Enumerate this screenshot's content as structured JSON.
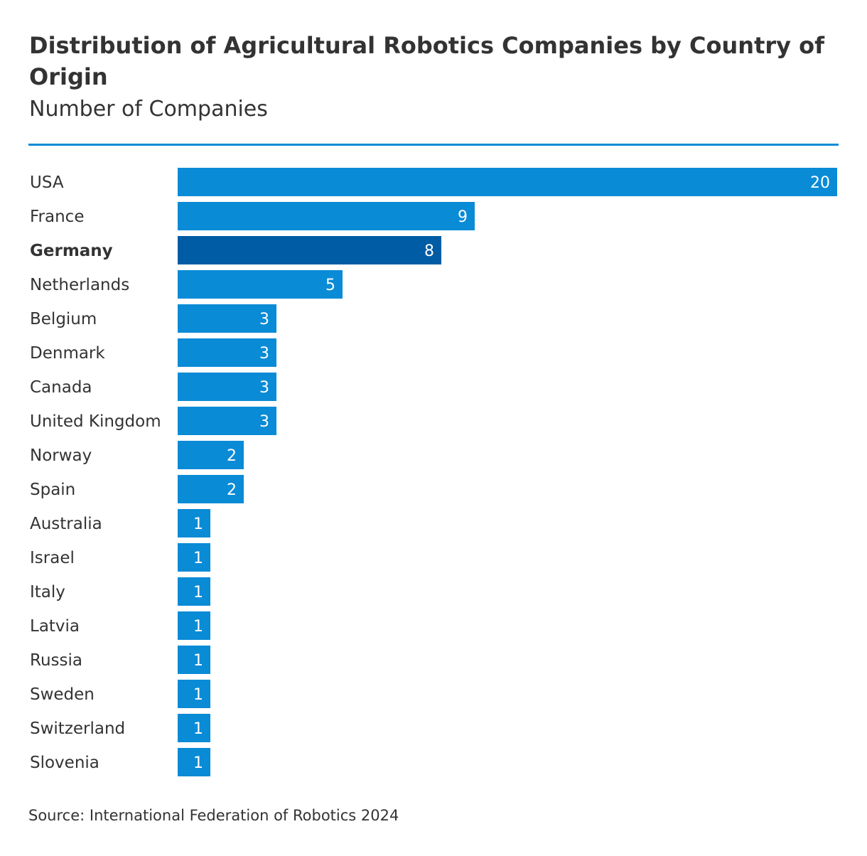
{
  "header": {
    "title": "Distribution of Agricultural Robotics Companies by Country of Origin",
    "subtitle": "Number of Companies"
  },
  "footer": {
    "source": "Source: International Federation of Robotics 2024"
  },
  "colors": {
    "bar": "#0a8bd6",
    "highlight_bar": "#005ca4",
    "rule": "#0a8bd6",
    "text": "#333333",
    "value_label": "#ffffff"
  },
  "chart_data": {
    "type": "bar",
    "orientation": "horizontal",
    "title": "Distribution of Agricultural Robotics Companies by Country of Origin",
    "subtitle": "Number of Companies",
    "xlabel": "",
    "ylabel": "",
    "xlim": [
      0,
      20
    ],
    "grid": false,
    "legend": "none",
    "highlighted_category": "Germany",
    "categories": [
      "USA",
      "France",
      "Germany",
      "Netherlands",
      "Belgium",
      "Denmark",
      "Canada",
      "United Kingdom",
      "Norway",
      "Spain",
      "Australia",
      "Israel",
      "Italy",
      "Latvia",
      "Russia",
      "Sweden",
      "Switzerland",
      "Slovenia"
    ],
    "values": [
      20,
      9,
      8,
      5,
      3,
      3,
      3,
      3,
      2,
      2,
      1,
      1,
      1,
      1,
      1,
      1,
      1,
      1
    ],
    "source": "Source: International Federation of Robotics 2024"
  }
}
